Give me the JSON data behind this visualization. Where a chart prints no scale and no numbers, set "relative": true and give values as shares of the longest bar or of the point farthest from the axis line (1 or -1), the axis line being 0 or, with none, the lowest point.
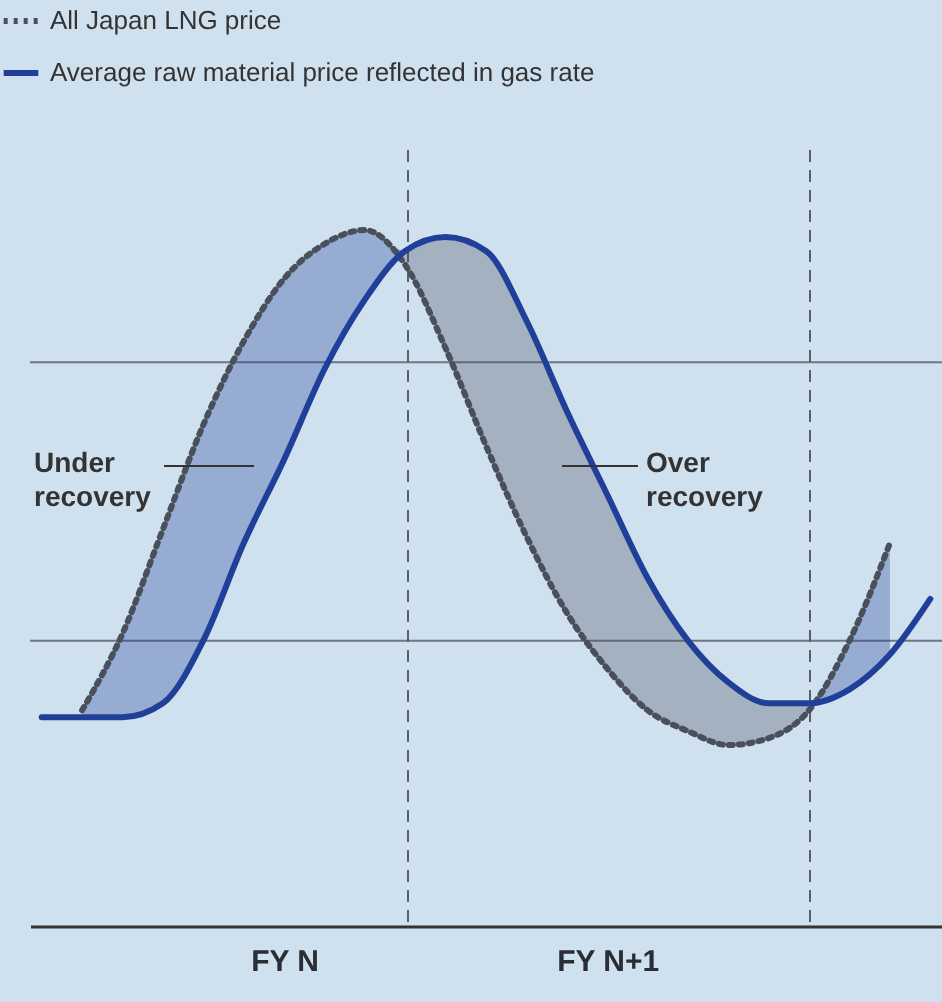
{
  "chart_data": {
    "type": "line",
    "relative": true,
    "legend": "top left",
    "categories": [
      null,
      null,
      null,
      null,
      null,
      null,
      "FY N",
      null,
      null,
      null,
      null,
      null,
      null,
      null,
      "FY N+1",
      null,
      null,
      null,
      null,
      null,
      null,
      null,
      null
    ],
    "series": [
      {
        "name": "All Japan LNG price",
        "color": "#4a4f5c",
        "line_style": "dotted",
        "values": [
          null,
          0.31,
          0.42,
          0.57,
          0.72,
          0.84,
          0.93,
          0.98,
          1.0,
          0.95,
          0.83,
          0.69,
          0.56,
          0.45,
          0.37,
          0.31,
          0.28,
          0.26,
          0.27,
          0.31,
          0.41,
          0.55,
          null
        ],
        "lower": [
          null,
          0.31,
          0.42,
          0.57,
          0.72,
          0.84,
          0.93,
          0.98,
          1.0,
          0.95,
          0.83,
          0.69,
          0.56,
          0.45,
          0.37,
          0.31,
          0.28,
          0.26,
          0.27,
          0.31,
          0.41,
          0.55,
          null
        ],
        "upper": [
          null,
          0.31,
          0.42,
          0.57,
          0.72,
          0.84,
          0.93,
          0.98,
          1.0,
          0.97,
          0.99,
          0.97,
          0.87,
          0.74,
          0.62,
          0.5,
          0.41,
          0.35,
          0.32,
          0.32,
          0.41,
          0.55,
          null
        ]
      },
      {
        "name": "Average raw material price reflected in gas rate",
        "color": "#1f3f99",
        "line_style": "solid",
        "values": [
          0.3,
          0.3,
          0.3,
          0.32,
          0.41,
          0.55,
          0.67,
          0.8,
          0.9,
          0.97,
          0.99,
          0.97,
          0.87,
          0.74,
          0.62,
          0.5,
          0.41,
          0.35,
          0.32,
          0.32,
          0.34,
          0.39,
          0.47
        ],
        "lower": [
          null,
          0.3,
          0.3,
          0.32,
          0.41,
          0.55,
          0.67,
          0.8,
          0.9,
          0.97,
          0.99,
          0.97,
          0.87,
          0.74,
          0.62,
          0.5,
          0.41,
          0.35,
          0.32,
          0.32,
          0.34,
          0.39,
          null
        ],
        "upper": [
          null,
          0.31,
          0.42,
          0.57,
          0.72,
          0.84,
          0.93,
          0.98,
          1.0,
          0.97,
          0.99,
          0.97,
          0.87,
          0.74,
          0.62,
          0.5,
          0.41,
          0.35,
          0.32,
          0.32,
          0.41,
          0.55,
          null
        ]
      }
    ],
    "ref_lines": [
      {
        "axis": "y",
        "value": 0.41,
        "color": "#6f7680",
        "line_style": "solid"
      },
      {
        "axis": "y",
        "value": 0.81,
        "color": "#6f7680",
        "line_style": "solid"
      }
    ],
    "annotations": [
      "Under recovery",
      "Over recovery"
    ]
  }
}
